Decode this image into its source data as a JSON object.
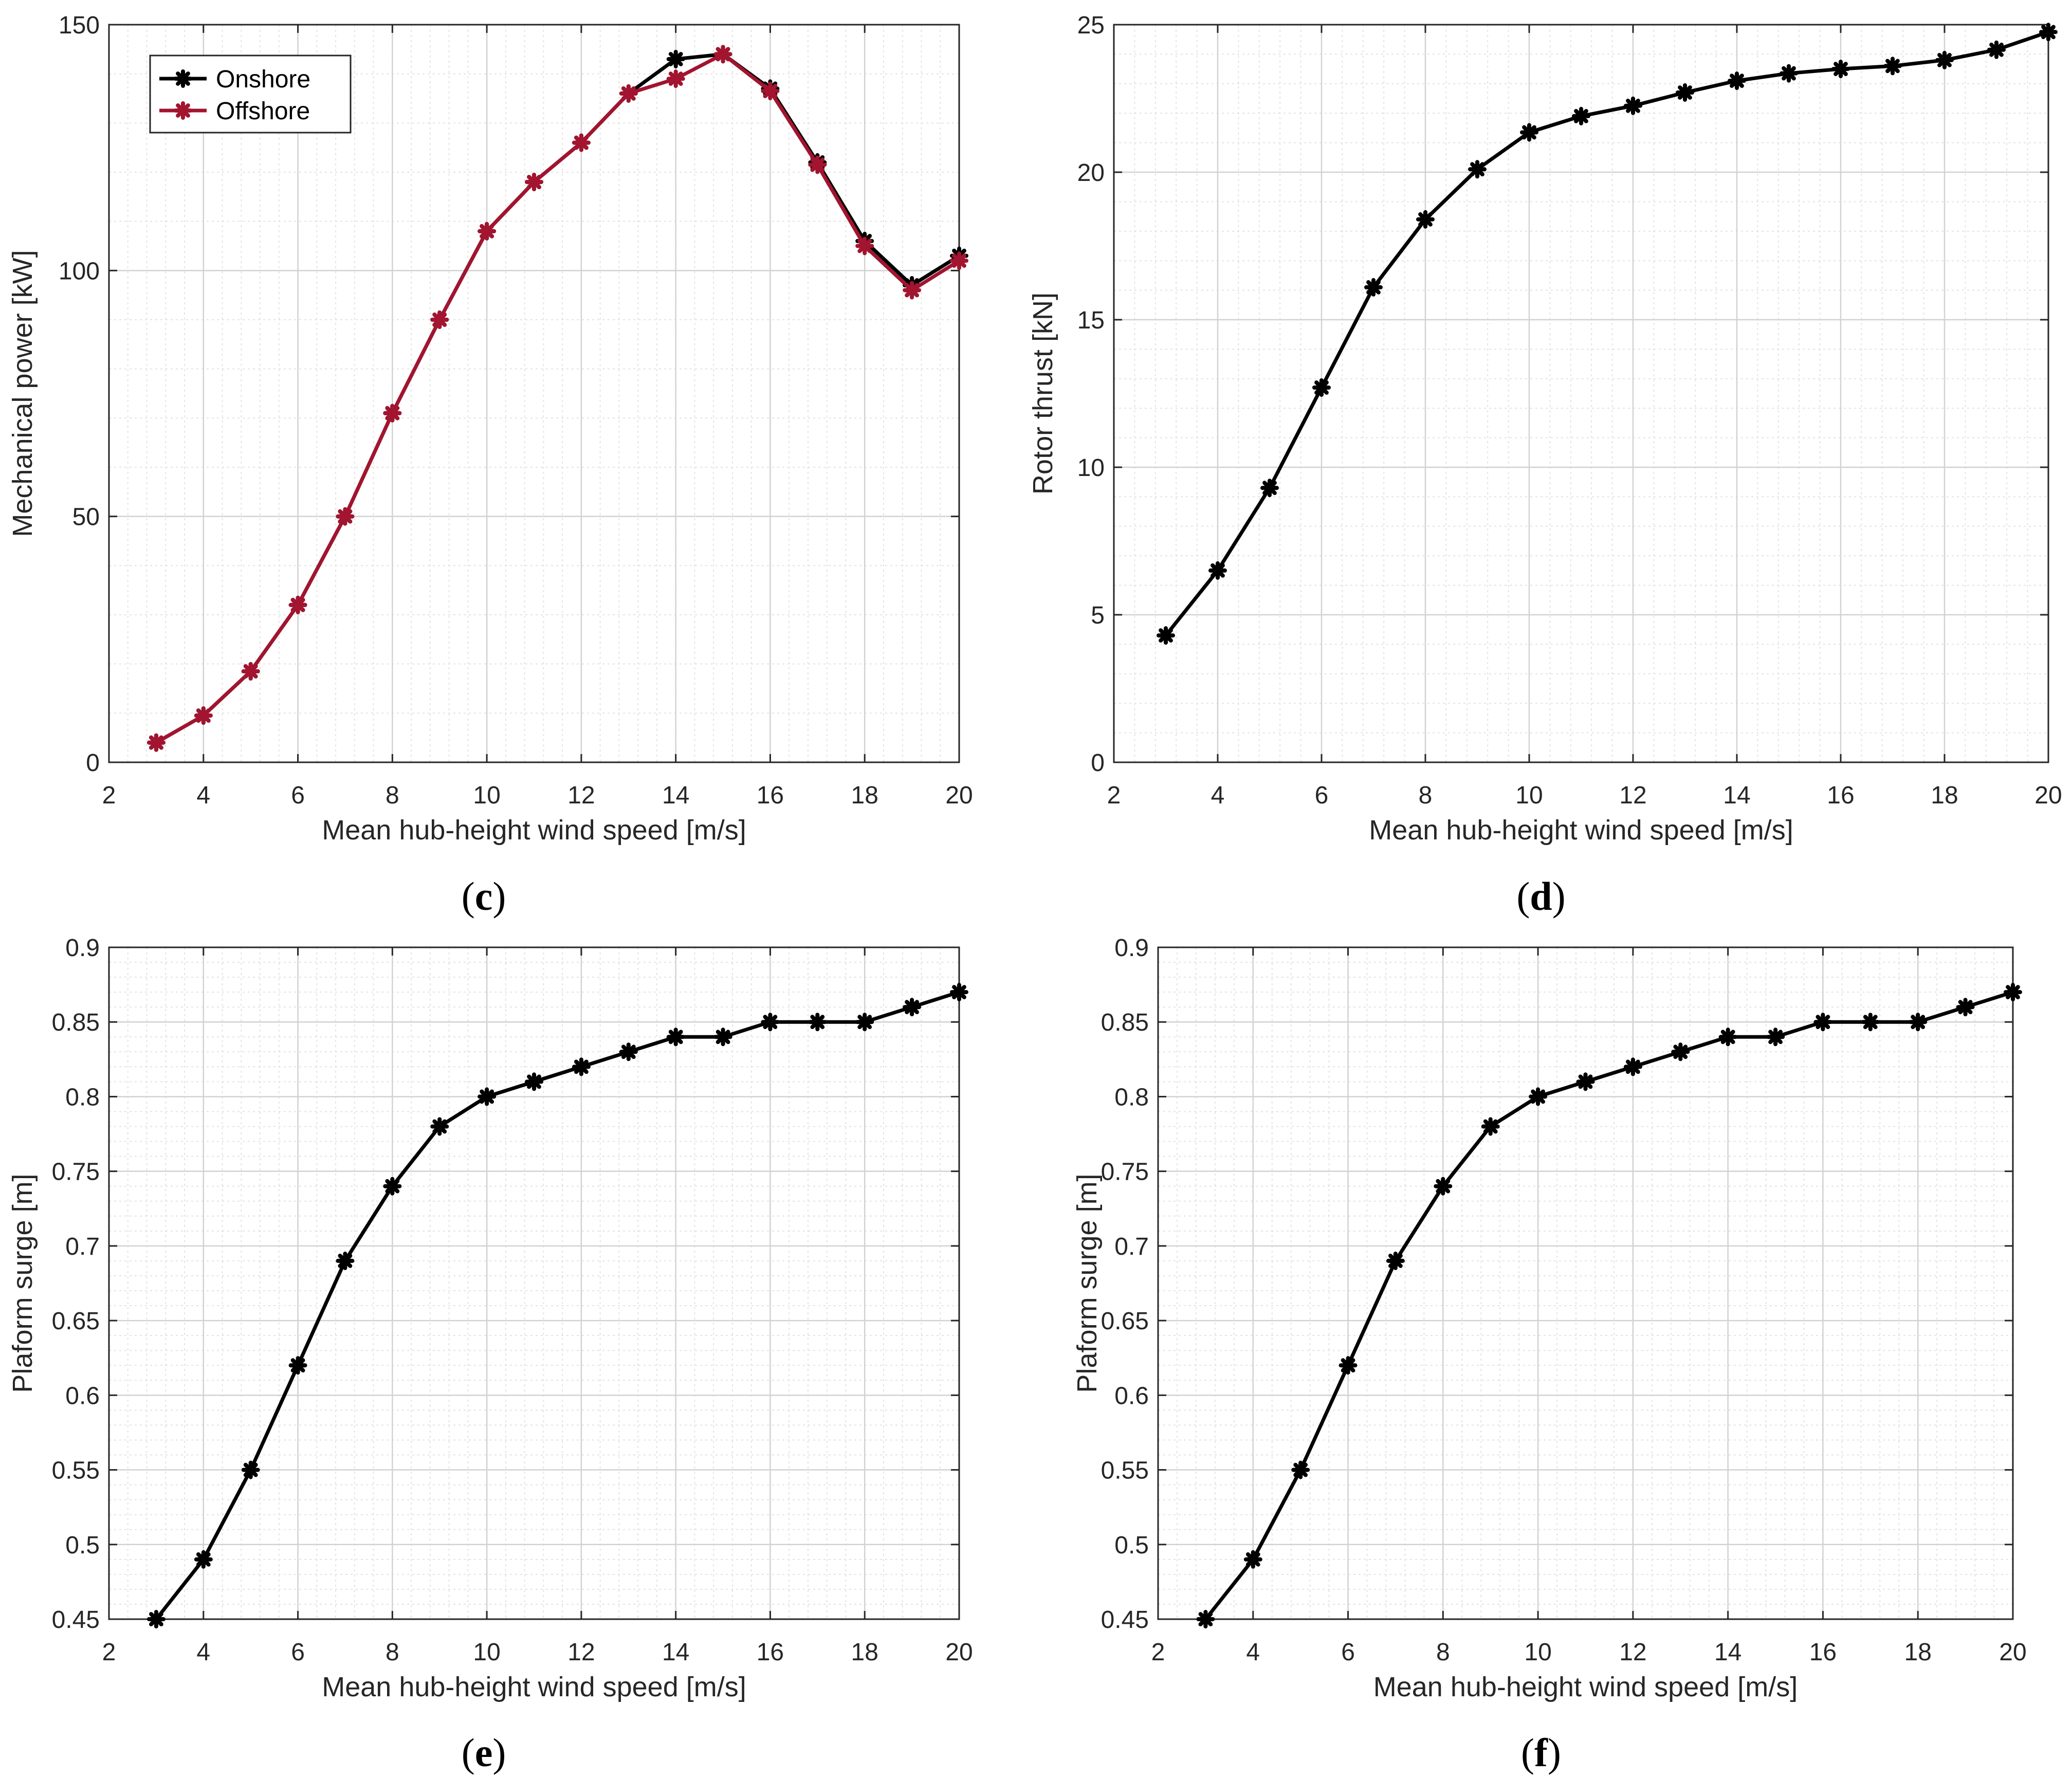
{
  "chart_data": [
    {
      "id": "c",
      "type": "line",
      "panel_label": "c",
      "xlabel": "Mean hub-height wind speed [m/s]",
      "ylabel": "Mechanical power [kW]",
      "xlim": [
        2,
        20
      ],
      "ylim": [
        0,
        150
      ],
      "xticks": [
        2,
        4,
        6,
        8,
        10,
        12,
        14,
        16,
        18,
        20
      ],
      "yticks": [
        0,
        50,
        100,
        150
      ],
      "ytick_labels": [
        "0",
        "50",
        "100",
        "150"
      ],
      "grid": true,
      "legend_position": "top-left",
      "x": [
        3,
        4,
        5,
        6,
        7,
        8,
        9,
        10,
        11,
        12,
        13,
        14,
        15,
        16,
        17,
        18,
        19,
        20
      ],
      "series": [
        {
          "name": "Onshore",
          "color": "#000000",
          "values": [
            4,
            9.5,
            18.5,
            32,
            50,
            71,
            90,
            108,
            118,
            126,
            136,
            143,
            144,
            137,
            122,
            106,
            97,
            103
          ]
        },
        {
          "name": "Offshore",
          "color": "#a2142f",
          "values": [
            4,
            9.5,
            18.5,
            32,
            50,
            71,
            90,
            108,
            118,
            126,
            136,
            139,
            144,
            136.5,
            121.5,
            105,
            96,
            102
          ]
        }
      ]
    },
    {
      "id": "d",
      "type": "line",
      "panel_label": "d",
      "xlabel": "Mean hub-height wind speed [m/s]",
      "ylabel": "Rotor thrust [kN]",
      "xlim": [
        2,
        20
      ],
      "ylim": [
        0,
        25
      ],
      "xticks": [
        2,
        4,
        6,
        8,
        10,
        12,
        14,
        16,
        18,
        20
      ],
      "yticks": [
        0,
        5,
        10,
        15,
        20,
        25
      ],
      "ytick_labels": [
        "0",
        "5",
        "10",
        "15",
        "20",
        "25"
      ],
      "grid": true,
      "x": [
        3,
        4,
        5,
        6,
        7,
        8,
        9,
        10,
        11,
        12,
        13,
        14,
        15,
        16,
        17,
        18,
        19,
        20
      ],
      "series": [
        {
          "name": "Rotor thrust",
          "color": "#000000",
          "values": [
            4.3,
            6.5,
            9.3,
            12.7,
            16.1,
            18.4,
            20.1,
            21.35,
            21.9,
            22.25,
            22.7,
            23.1,
            23.35,
            23.5,
            23.6,
            23.8,
            24.15,
            24.75
          ]
        }
      ]
    },
    {
      "id": "e",
      "type": "line",
      "panel_label": "e",
      "xlabel": "Mean hub-height wind speed [m/s]",
      "ylabel": "Plaform surge [m]",
      "xlim": [
        2,
        20
      ],
      "ylim": [
        0.45,
        0.9
      ],
      "xticks": [
        2,
        4,
        6,
        8,
        10,
        12,
        14,
        16,
        18,
        20
      ],
      "yticks": [
        0.45,
        0.5,
        0.55,
        0.6,
        0.65,
        0.7,
        0.75,
        0.8,
        0.85,
        0.9
      ],
      "ytick_labels": [
        "0.45",
        "0.5",
        "0.55",
        "0.6",
        "0.65",
        "0.7",
        "0.75",
        "0.8",
        "0.85",
        "0.9"
      ],
      "grid": true,
      "x": [
        3,
        4,
        5,
        6,
        7,
        8,
        9,
        10,
        11,
        12,
        13,
        14,
        15,
        16,
        17,
        18,
        19,
        20
      ],
      "series": [
        {
          "name": "Platform surge",
          "color": "#000000",
          "values": [
            0.45,
            0.49,
            0.55,
            0.62,
            0.69,
            0.74,
            0.78,
            0.8,
            0.81,
            0.82,
            0.83,
            0.84,
            0.84,
            0.85,
            0.85,
            0.85,
            0.86,
            0.87
          ]
        }
      ]
    },
    {
      "id": "f",
      "type": "line",
      "panel_label": "f",
      "xlabel": "Mean hub-height wind speed [m/s]",
      "ylabel": "Plaform surge [m]",
      "xlim": [
        2,
        20
      ],
      "ylim": [
        0.45,
        0.9
      ],
      "xticks": [
        2,
        4,
        6,
        8,
        10,
        12,
        14,
        16,
        18,
        20
      ],
      "yticks": [
        0.45,
        0.5,
        0.55,
        0.6,
        0.65,
        0.7,
        0.75,
        0.8,
        0.85,
        0.9
      ],
      "ytick_labels": [
        "0.45",
        "0.5",
        "0.55",
        "0.6",
        "0.65",
        "0.7",
        "0.75",
        "0.8",
        "0.85",
        "0.9"
      ],
      "grid": true,
      "x": [
        3,
        4,
        5,
        6,
        7,
        8,
        9,
        10,
        11,
        12,
        13,
        14,
        15,
        16,
        17,
        18,
        19,
        20
      ],
      "series": [
        {
          "name": "Platform surge",
          "color": "#000000",
          "values": [
            0.45,
            0.49,
            0.55,
            0.62,
            0.69,
            0.74,
            0.78,
            0.8,
            0.81,
            0.82,
            0.83,
            0.84,
            0.84,
            0.85,
            0.85,
            0.85,
            0.86,
            0.87
          ]
        }
      ]
    }
  ]
}
